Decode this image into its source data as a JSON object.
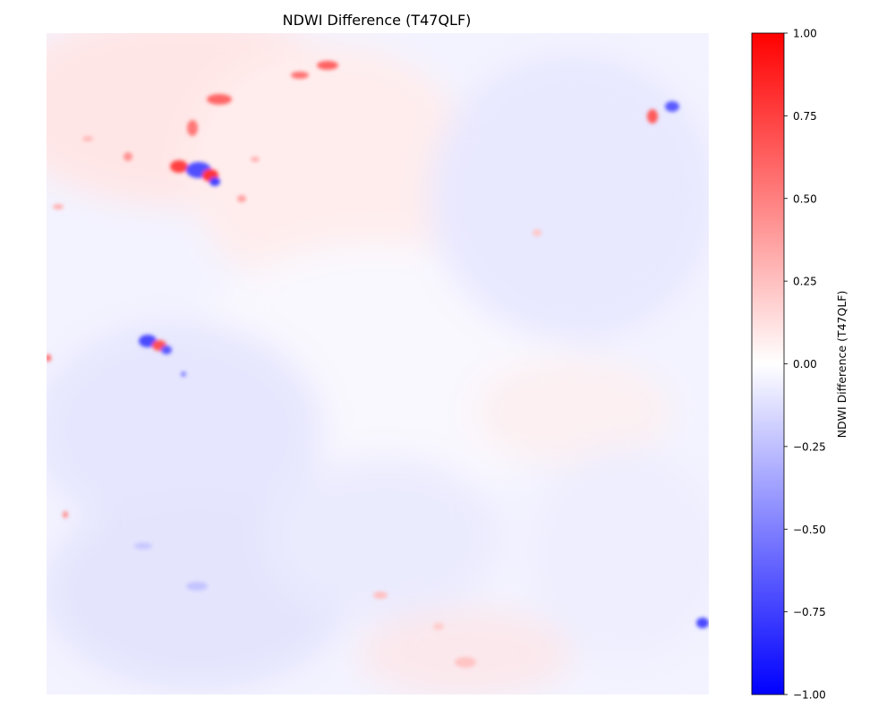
{
  "chart_data": {
    "type": "heatmap",
    "title": "NDWI Difference (T47QLF)",
    "axes_visible": false,
    "colormap": "bwr",
    "colorbar": {
      "label": "NDWI Difference (T47QLF)",
      "range": [
        -1.0,
        1.0
      ],
      "ticks": [
        "-1.00",
        "-0.75",
        "-0.50",
        "-0.25",
        "0.00",
        "0.25",
        "0.50",
        "0.75",
        "1.00"
      ],
      "tick_values": [
        -1.0,
        -0.75,
        -0.5,
        -0.25,
        0.0,
        0.25,
        0.5,
        0.75,
        1.0
      ],
      "placement": "right"
    },
    "colors": {
      "min": "#0000ff",
      "mid": "#ffffff",
      "max": "#ff0000"
    },
    "field_description_values": {
      "background_range": [
        -0.15,
        0.1
      ],
      "anomaly_extremes": [
        -0.9,
        0.85
      ]
    }
  }
}
